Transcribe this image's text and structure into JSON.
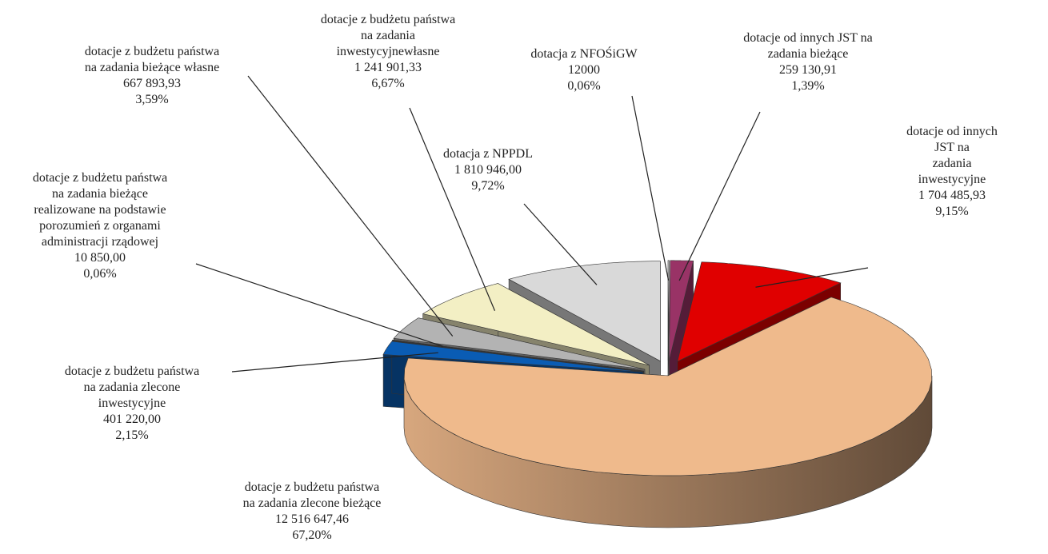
{
  "chart_data": {
    "type": "pie3d",
    "categories": [
      "dotacja z NFOŚiGW",
      "dotacje od innych JST na\nzadania bieżące",
      "dotacje od innych JST na\nzadania inwestycyjne",
      "dotacje z budżetu państwa\nna zadania zlecone bieżące",
      "dotacje z budżetu państwa\nna zadania zlecone\ninwestycyjne",
      "dotacje z budżetu państwa\nna zadania bieżące\nrealizowane na podstawie\nporozumień z organami\nadministracji rządowej",
      "dotacje z budżetu państwa\nna zadania bieżące własne",
      "dotacje z budżetu państwa\nna zadania\ninwestycyjnewłasne",
      "dotacja z NPPDL"
    ],
    "values": [
      12000,
      259130.91,
      1704485.93,
      12516647.46,
      401220.0,
      10850.0,
      667893.93,
      1241901.33,
      1810946.0
    ],
    "value_labels": [
      "12000",
      "259 130,91",
      "1 704 485,93",
      "12 516 647,46",
      "401 220,00",
      "10 850,00",
      "667 893,93",
      "1 241 901,33",
      "1 810 946,00"
    ],
    "percents": [
      0.06,
      1.39,
      9.15,
      67.2,
      2.15,
      0.06,
      3.59,
      6.67,
      9.72
    ],
    "percent_labels": [
      "0,06%",
      "1,39%",
      "9,15%",
      "67,20%",
      "2,15%",
      "0,06%",
      "3,59%",
      "6,67%",
      "9,72%"
    ],
    "colors": [
      "#e8e8e8",
      "#993366",
      "#e00000",
      "#efba8c",
      "#0a5cb4",
      "#606060",
      "#b3b3b3",
      "#f3efc4",
      "#d9d9d9"
    ]
  }
}
